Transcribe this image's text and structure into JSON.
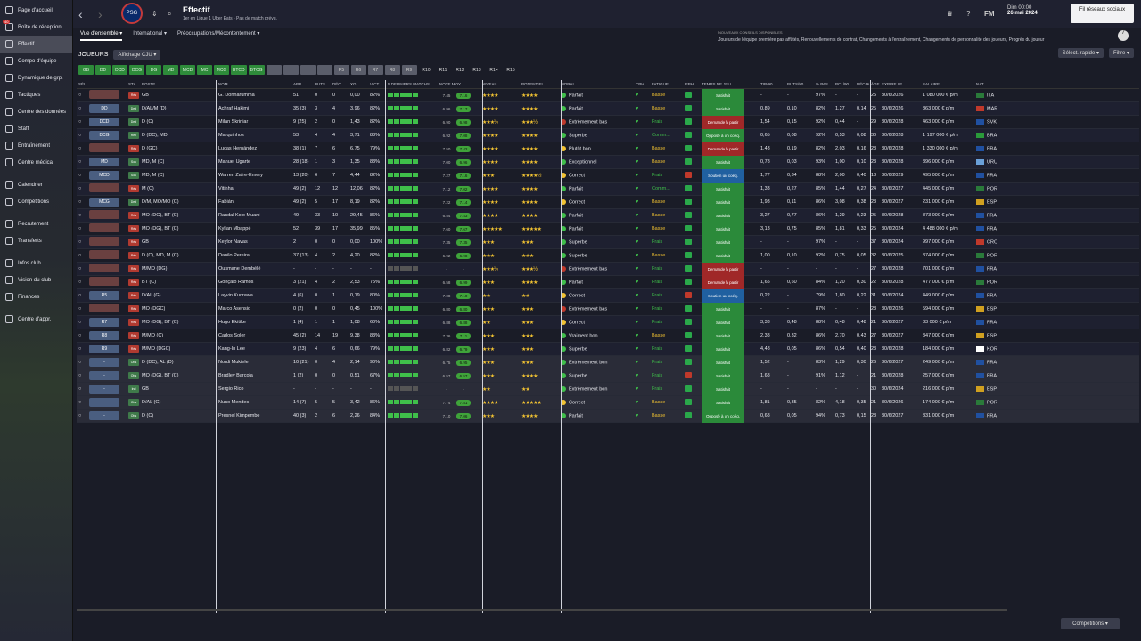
{
  "sidebar": {
    "items": [
      {
        "label": "Page d'accueil"
      },
      {
        "label": "Boîte de réception",
        "badge": "40"
      },
      {
        "label": "Effectif",
        "active": true
      },
      {
        "label": "Compo d'équipe"
      },
      {
        "label": "Dynamique de grp."
      },
      {
        "label": "Tactiques"
      },
      {
        "label": "Centre des données"
      },
      {
        "label": "Staff"
      },
      {
        "label": "Entraînement"
      },
      {
        "label": "Centre médical"
      },
      {
        "label": "Calendrier"
      },
      {
        "label": "Compétitions"
      },
      {
        "label": "Recrutement"
      },
      {
        "label": "Transferts"
      },
      {
        "label": "Infos club"
      },
      {
        "label": "Vision du club"
      },
      {
        "label": "Finances"
      },
      {
        "label": "Centre d'appr."
      }
    ]
  },
  "header": {
    "title": "Effectif",
    "subtitle": "1er en Ligue 1 Uber Eats - Pas de match prévu.",
    "club_logo": "PSG",
    "date_time": "Dim 00:00",
    "date": "26 mai 2024",
    "social_btn": "Fil réseaux sociaux",
    "fm": "FM"
  },
  "tabs": [
    {
      "label": "Vue d'ensemble ▾"
    },
    {
      "label": "International ▾"
    },
    {
      "label": "Préoccupations/Mécontentement ▾"
    }
  ],
  "news": {
    "title": "NOUVEAUX CONSEILS DISPONIBLES",
    "text": "Joueurs de l'équipe première pas affûtés, Renouvellements de contrat, Changements à l'entraînement, Changements de personnalité des joueurs, Progrès du joueur",
    "badge": "7"
  },
  "players_label": "JOUEURS",
  "view_select": "Affichage CJU ▾",
  "quick_select": "Sélect. rapide ▾",
  "filter": "Filtre ▾",
  "pos_filters": [
    "GB",
    "DD",
    "DCD",
    "DCG",
    "DG",
    "MD",
    "MCD",
    "MC",
    "MCG",
    "BTCD",
    "BTCG",
    "",
    "",
    "",
    "",
    "R5",
    "R6",
    "R7",
    "R8",
    "R9",
    "R10",
    "R11",
    "R12",
    "R13",
    "R14",
    "R15"
  ],
  "columns": [
    "SÉL",
    "",
    "STA",
    "POSTE",
    "NOM",
    "APP",
    "BUTS",
    "DÉC",
    "XG",
    "VICT",
    "5 DERNIERS MATCHS",
    "NOTE MOY.",
    "NIVEAU",
    "POTENTIEL",
    "MORAL",
    "CPH",
    "FATIGUE",
    "FPH",
    "TEMPS DE JEU",
    "TIR/90",
    "BUTS/90",
    "% PAS.",
    "PCL/90",
    "DÉC/90",
    "ÂGE",
    "EXPIRE LE",
    "SALAIRE",
    "NAT"
  ],
  "players": [
    {
      "tac": "",
      "sta": "Rés",
      "pos": "GB",
      "name": "G. Donnarumma",
      "app": "51",
      "buts": "0",
      "dec": "0",
      "xg": "0,00",
      "vict": "82%",
      "note1": "7.45",
      "note2": "7.16",
      "niv": "★★★★",
      "pot": "★★★★",
      "moral": "Parfait",
      "mc": "#3fbf4a",
      "fat": "Basse",
      "tps": "Satisfait",
      "tc": "",
      "tir": "-",
      "b90": "-",
      "pas": "97%",
      "pcl": "-",
      "d90": "-",
      "age": "25",
      "exp": "30/6/2026",
      "sal": "1 080 000 € p/m",
      "nat": "ITA",
      "fl": "#2a7a3a"
    },
    {
      "tac": "DD",
      "sta": "Ded",
      "pos": "D/AL/M (D)",
      "name": "Achraf Hakimi",
      "app": "35 (3)",
      "buts": "3",
      "dec": "4",
      "xg": "3,96",
      "vict": "82%",
      "note1": "6.96",
      "note2": "7.17",
      "niv": "★★★★",
      "pot": "★★★★",
      "moral": "Parfait",
      "mc": "#3fbf4a",
      "fat": "Basse",
      "tps": "Satisfait",
      "tc": "",
      "tir": "0,89",
      "b90": "0,10",
      "pas": "82%",
      "pcl": "1,27",
      "d90": "0,14",
      "age": "25",
      "exp": "30/6/2026",
      "sal": "863 000 € p/m",
      "nat": "MAR",
      "fl": "#c0392b"
    },
    {
      "tac": "DCD",
      "sta": "Ded",
      "pos": "D (C)",
      "name": "Milan Škriniar",
      "app": "9 (25)",
      "buts": "2",
      "dec": "0",
      "xg": "1,43",
      "vict": "82%",
      "note1": "6.90",
      "note2": "6.98",
      "niv": "★★★½",
      "pot": "★★★½",
      "moral": "Extrêmement bas",
      "mc": "#c0392b",
      "fat": "Frais",
      "tps": "Demande à partir",
      "tc": "red",
      "tir": "1,54",
      "b90": "0,15",
      "pas": "92%",
      "pcl": "0,44",
      "d90": "-",
      "age": "29",
      "exp": "30/6/2028",
      "sal": "463 000 € p/m",
      "nat": "SVK",
      "fl": "#2050a0"
    },
    {
      "tac": "DCG",
      "sta": "Rep",
      "pos": "D (DC), MD",
      "name": "Marquinhos",
      "app": "53",
      "buts": "4",
      "dec": "4",
      "xg": "3,71",
      "vict": "83%",
      "note1": "6.92",
      "note2": "7.08",
      "niv": "★★★★",
      "pot": "★★★★",
      "moral": "Superbe",
      "mc": "#3fbf4a",
      "fat": "Comm...",
      "tps": "Opposé à un coéq.",
      "tc": "",
      "tir": "0,65",
      "b90": "0,08",
      "pas": "92%",
      "pcl": "0,53",
      "d90": "0,08",
      "age": "30",
      "exp": "30/6/2028",
      "sal": "1 197 000 € p/m",
      "nat": "BRA",
      "fl": "#2a9a3a"
    },
    {
      "tac": "",
      "sta": "Rés",
      "pos": "D (GC)",
      "name": "Lucas Hernández",
      "app": "38 (1)",
      "buts": "7",
      "dec": "6",
      "xg": "6,75",
      "vict": "79%",
      "note1": "7.50",
      "note2": "7.42",
      "niv": "★★★★",
      "pot": "★★★★",
      "moral": "Plutôt bon",
      "mc": "#f1c232",
      "fat": "Basse",
      "tps": "Demande à partir",
      "tc": "red",
      "tir": "1,43",
      "b90": "0,19",
      "pas": "82%",
      "pcl": "2,03",
      "d90": "0,16",
      "age": "28",
      "exp": "30/6/2028",
      "sal": "1 330 000 € p/m",
      "nat": "FRA",
      "fl": "#2050a0"
    },
    {
      "tac": "MD",
      "sta": "Sou",
      "pos": "MD, M (C)",
      "name": "Manuel Ugarte",
      "app": "28 (18)",
      "buts": "1",
      "dec": "3",
      "xg": "1,35",
      "vict": "83%",
      "note1": "7.00",
      "note2": "6.96",
      "niv": "★★★★",
      "pot": "★★★★",
      "moral": "Exceptionnel",
      "mc": "#3fbf4a",
      "fat": "Basse",
      "tps": "Satisfait",
      "tc": "",
      "tir": "0,78",
      "b90": "0,03",
      "pas": "93%",
      "pcl": "1,00",
      "d90": "0,10",
      "age": "23",
      "exp": "30/6/2028",
      "sal": "396 000 € p/m",
      "nat": "URU",
      "fl": "#6aa0d8"
    },
    {
      "tac": "MCD",
      "sta": "Sou",
      "pos": "MD, M (C)",
      "name": "Warren Zaïre-Emery",
      "app": "13 (20)",
      "buts": "6",
      "dec": "7",
      "xg": "4,44",
      "vict": "82%",
      "note1": "7.27",
      "note2": "7.16",
      "niv": "★★★",
      "pot": "★★★★½",
      "moral": "Correct",
      "mc": "#f1c232",
      "fat": "Frais",
      "tps": "Soutien un coéq.",
      "tc": "blue",
      "tir": "1,77",
      "b90": "0,34",
      "pas": "88%",
      "pcl": "2,00",
      "d90": "0,40",
      "age": "18",
      "exp": "30/6/2029",
      "sal": "495 000 € p/m",
      "nat": "FRA",
      "fl": "#2050a0"
    },
    {
      "tac": "",
      "sta": "Rés",
      "pos": "M (C)",
      "name": "Vitinha",
      "app": "49 (2)",
      "buts": "12",
      "dec": "12",
      "xg": "12,06",
      "vict": "82%",
      "note1": "7.12",
      "note2": "7.02",
      "niv": "★★★★",
      "pot": "★★★★",
      "moral": "Parfait",
      "mc": "#3fbf4a",
      "fat": "Comm...",
      "tps": "Satisfait",
      "tc": "",
      "tir": "1,33",
      "b90": "0,27",
      "pas": "85%",
      "pcl": "1,44",
      "d90": "0,27",
      "age": "24",
      "exp": "30/6/2027",
      "sal": "445 000 € p/m",
      "nat": "POR",
      "fl": "#2a7a3a"
    },
    {
      "tac": "MCG",
      "sta": "Ded",
      "pos": "D/M, MO/MO (C)",
      "name": "Fabián",
      "app": "49 (2)",
      "buts": "5",
      "dec": "17",
      "xg": "8,19",
      "vict": "82%",
      "note1": "7.22",
      "note2": "7.14",
      "niv": "★★★★",
      "pot": "★★★★",
      "moral": "Correct",
      "mc": "#f1c232",
      "fat": "Basse",
      "tps": "Satisfait",
      "tc": "",
      "tir": "1,93",
      "b90": "0,11",
      "pas": "86%",
      "pcl": "3,08",
      "d90": "0,38",
      "age": "28",
      "exp": "30/6/2027",
      "sal": "231 000 € p/m",
      "nat": "ESP",
      "fl": "#d0a020"
    },
    {
      "tac": "",
      "sta": "Rés",
      "pos": "MO (DG), BT (C)",
      "name": "Randal Kolo Muani",
      "app": "49",
      "buts": "33",
      "dec": "10",
      "xg": "29,45",
      "vict": "86%",
      "note1": "6.54",
      "note2": "7.43",
      "niv": "★★★★",
      "pot": "★★★★",
      "moral": "Parfait",
      "mc": "#3fbf4a",
      "fat": "Basse",
      "tps": "Satisfait",
      "tc": "",
      "tir": "3,27",
      "b90": "0,77",
      "pas": "86%",
      "pcl": "1,29",
      "d90": "0,23",
      "age": "25",
      "exp": "30/6/2028",
      "sal": "873 000 € p/m",
      "nat": "FRA",
      "fl": "#2050a0"
    },
    {
      "tac": "",
      "sta": "Rés",
      "pos": "MO (DG), BT (C)",
      "name": "Kylian Mbappé",
      "app": "52",
      "buts": "39",
      "dec": "17",
      "xg": "35,99",
      "vict": "85%",
      "note1": "7.60",
      "note2": "7.67",
      "niv": "★★★★★",
      "pot": "★★★★★",
      "moral": "Parfait",
      "mc": "#3fbf4a",
      "fat": "Basse",
      "tps": "Satisfait",
      "tc": "",
      "tir": "3,13",
      "b90": "0,75",
      "pas": "85%",
      "pcl": "1,81",
      "d90": "0,33",
      "age": "25",
      "exp": "30/6/2024",
      "sal": "4 488 000 € p/m",
      "nat": "FRA",
      "fl": "#2050a0"
    },
    {
      "tac": "",
      "sta": "Rés",
      "pos": "GB",
      "name": "Keylor Navas",
      "app": "2",
      "buts": "0",
      "dec": "0",
      "xg": "0,00",
      "vict": "100%",
      "note1": "7.35",
      "note2": "7.35",
      "niv": "★★★",
      "pot": "★★★",
      "moral": "Superbe",
      "mc": "#3fbf4a",
      "fat": "Frais",
      "tps": "Satisfait",
      "tc": "",
      "tir": "-",
      "b90": "-",
      "pas": "97%",
      "pcl": "-",
      "d90": "-",
      "age": "37",
      "exp": "30/6/2024",
      "sal": "997 000 € p/m",
      "nat": "CRC",
      "fl": "#c0392b"
    },
    {
      "tac": "",
      "sta": "Rés",
      "pos": "D (C), MD, M (C)",
      "name": "Danilo Pereira",
      "app": "37 (13)",
      "buts": "4",
      "dec": "2",
      "xg": "4,20",
      "vict": "82%",
      "note1": "6.92",
      "note2": "6.98",
      "niv": "★★★",
      "pot": "★★★",
      "moral": "Superbe",
      "mc": "#3fbf4a",
      "fat": "Basse",
      "tps": "Satisfait",
      "tc": "",
      "tir": "1,00",
      "b90": "0,10",
      "pas": "92%",
      "pcl": "0,75",
      "d90": "0,05",
      "age": "32",
      "exp": "30/6/2025",
      "sal": "374 000 € p/m",
      "nat": "POR",
      "fl": "#2a7a3a"
    },
    {
      "tac": "",
      "sta": "Rés",
      "pos": "M/MO (DG)",
      "name": "Ousmane Dembélé",
      "app": "-",
      "buts": "-",
      "dec": "-",
      "xg": "-",
      "vict": "-",
      "note1": "-",
      "note2": "-",
      "niv": "★★★½",
      "pot": "★★★½",
      "moral": "Extrêmement bas",
      "mc": "#c0392b",
      "fat": "Frais",
      "tps": "Demande à partir",
      "tc": "red",
      "tir": "-",
      "b90": "-",
      "pas": "-",
      "pcl": "-",
      "d90": "-",
      "age": "27",
      "exp": "30/6/2028",
      "sal": "701 000 € p/m",
      "nat": "FRA",
      "fl": "#2050a0"
    },
    {
      "tac": "",
      "sta": "Rés",
      "pos": "BT (C)",
      "name": "Gonçalo Ramos",
      "app": "3 (21)",
      "buts": "4",
      "dec": "2",
      "xg": "2,53",
      "vict": "75%",
      "note1": "6.58",
      "note2": "6.99",
      "niv": "★★★",
      "pot": "★★★★",
      "moral": "Parfait",
      "mc": "#3fbf4a",
      "fat": "Frais",
      "tps": "Demande à partir",
      "tc": "red",
      "tir": "1,65",
      "b90": "0,60",
      "pas": "84%",
      "pcl": "1,20",
      "d90": "0,30",
      "age": "22",
      "exp": "30/6/2028",
      "sal": "477 000 € p/m",
      "nat": "POR",
      "fl": "#2a7a3a"
    },
    {
      "tac": "R5",
      "sta": "Rés",
      "pos": "D/AL (G)",
      "name": "Layvin Kurzawa",
      "app": "4 (6)",
      "buts": "0",
      "dec": "1",
      "xg": "0,19",
      "vict": "80%",
      "note1": "7.08",
      "note2": "7.10",
      "niv": "★★",
      "pot": "★★",
      "moral": "Correct",
      "mc": "#f1c232",
      "fat": "Frais",
      "tps": "Soutien un coéq.",
      "tc": "blue",
      "tir": "0,22",
      "b90": "-",
      "pas": "79%",
      "pcl": "1,80",
      "d90": "0,22",
      "age": "31",
      "exp": "30/6/2024",
      "sal": "449 000 € p/m",
      "nat": "FRA",
      "fl": "#2050a0"
    },
    {
      "tac": "",
      "sta": "Rés",
      "pos": "MO (DGC)",
      "name": "Marco Asensio",
      "app": "0 (2)",
      "buts": "0",
      "dec": "0",
      "xg": "0,45",
      "vict": "100%",
      "note1": "6.80",
      "note2": "6.80",
      "niv": "★★★",
      "pot": "★★★",
      "moral": "Extrêmement bas",
      "mc": "#c0392b",
      "fat": "Frais",
      "tps": "Satisfait",
      "tc": "",
      "tir": "-",
      "b90": "-",
      "pas": "87%",
      "pcl": "-",
      "d90": "-",
      "age": "28",
      "exp": "30/6/2026",
      "sal": "594 000 € p/m",
      "nat": "ESP",
      "fl": "#d0a020"
    },
    {
      "tac": "R7",
      "sta": "Rés",
      "pos": "MO (DG), BT (C)",
      "name": "Hugo Ekitike",
      "app": "1 (4)",
      "buts": "1",
      "dec": "1",
      "xg": "1,08",
      "vict": "60%",
      "note1": "6.88",
      "note2": "6.88",
      "niv": "★★",
      "pot": "★★★",
      "moral": "Correct",
      "mc": "#f1c232",
      "fat": "Frais",
      "tps": "Satisfait",
      "tc": "",
      "tir": "3,33",
      "b90": "0,48",
      "pas": "88%",
      "pcl": "0,48",
      "d90": "0,48",
      "age": "21",
      "exp": "30/6/2027",
      "sal": "83 000 € p/m",
      "nat": "FRA",
      "fl": "#2050a0"
    },
    {
      "tac": "R8",
      "sta": "Rés",
      "pos": "M/MO (C)",
      "name": "Carlos Soler",
      "app": "45 (2)",
      "buts": "14",
      "dec": "19",
      "xg": "9,38",
      "vict": "83%",
      "note1": "7.36",
      "note2": "7.11",
      "niv": "★★★",
      "pot": "★★★",
      "moral": "Vraiment bon",
      "mc": "#3fbf4a",
      "fat": "Basse",
      "tps": "Satisfait",
      "tc": "",
      "tir": "2,38",
      "b90": "0,32",
      "pas": "86%",
      "pcl": "2,70",
      "d90": "0,43",
      "age": "27",
      "exp": "30/6/2027",
      "sal": "347 000 € p/m",
      "nat": "ESP",
      "fl": "#d0a020"
    },
    {
      "tac": "R9",
      "sta": "Rés",
      "pos": "M/MO (DGC)",
      "name": "Kang-In Lee",
      "app": "9 (23)",
      "buts": "4",
      "dec": "6",
      "xg": "0,66",
      "vict": "79%",
      "note1": "6.82",
      "note2": "6.79",
      "niv": "★★★",
      "pot": "★★★",
      "moral": "Superbe",
      "mc": "#3fbf4a",
      "fat": "Frais",
      "tps": "Satisfait",
      "tc": "",
      "tir": "4,48",
      "b90": "0,05",
      "pas": "86%",
      "pcl": "0,54",
      "d90": "0,40",
      "age": "23",
      "exp": "30/6/2028",
      "sal": "184 000 € p/m",
      "nat": "KOR",
      "fl": "#ffffff"
    },
    {
      "tac": "-",
      "sta": "Obs",
      "pos": "D (DC), AL (D)",
      "name": "Nordi Mukiele",
      "app": "10 (21)",
      "buts": "0",
      "dec": "4",
      "xg": "2,14",
      "vict": "90%",
      "note1": "6.75",
      "note2": "6.95",
      "niv": "★★★",
      "pot": "★★★",
      "moral": "Extrêmement bon",
      "mc": "#3fbf4a",
      "fat": "Frais",
      "tps": "Satisfait",
      "tc": "",
      "tir": "1,52",
      "b90": "-",
      "pas": "83%",
      "pcl": "1,29",
      "d90": "0,30",
      "age": "26",
      "exp": "30/6/2027",
      "sal": "249 000 € p/m",
      "nat": "FRA",
      "fl": "#2050a0",
      "dim": true
    },
    {
      "tac": "-",
      "sta": "Obs",
      "pos": "MO (DG), BT (C)",
      "name": "Bradley Barcola",
      "app": "1 (2)",
      "buts": "0",
      "dec": "0",
      "xg": "0,51",
      "vict": "67%",
      "note1": "6.57",
      "note2": "6.57",
      "niv": "★★★",
      "pot": "★★★★",
      "moral": "Superbe",
      "mc": "#3fbf4a",
      "fat": "Frais",
      "tps": "Satisfait",
      "tc": "",
      "tir": "1,68",
      "b90": "-",
      "pas": "91%",
      "pcl": "1,12",
      "d90": "-",
      "age": "21",
      "exp": "30/6/2028",
      "sal": "257 000 € p/m",
      "nat": "FRA",
      "fl": "#2050a0",
      "dim": true
    },
    {
      "tac": "-",
      "sta": "Ind",
      "pos": "GB",
      "name": "Sergio Rico",
      "app": "-",
      "buts": "-",
      "dec": "-",
      "xg": "-",
      "vict": "-",
      "note1": "-",
      "note2": "-",
      "niv": "★★",
      "pot": "★★",
      "moral": "Extrêmement bon",
      "mc": "#3fbf4a",
      "fat": "Frais",
      "tps": "Satisfait",
      "tc": "",
      "tir": "-",
      "b90": "-",
      "pas": "-",
      "pcl": "-",
      "d90": "-",
      "age": "30",
      "exp": "30/6/2024",
      "sal": "216 000 € p/m",
      "nat": "ESP",
      "fl": "#d0a020",
      "dim": true
    },
    {
      "tac": "-",
      "sta": "Obs",
      "pos": "D/AL (G)",
      "name": "Nuno Mendes",
      "app": "14 (7)",
      "buts": "5",
      "dec": "5",
      "xg": "3,42",
      "vict": "86%",
      "note1": "7.74",
      "note2": "7.81",
      "niv": "★★★★",
      "pot": "★★★★★",
      "moral": "Correct",
      "mc": "#f1c232",
      "fat": "Basse",
      "tps": "Satisfait",
      "tc": "",
      "tir": "1,81",
      "b90": "0,35",
      "pas": "82%",
      "pcl": "4,18",
      "d90": "0,35",
      "age": "21",
      "exp": "30/6/2026",
      "sal": "174 000 € p/m",
      "nat": "POR",
      "fl": "#2a7a3a",
      "dim": true
    },
    {
      "tac": "-",
      "sta": "Obs",
      "pos": "D (C)",
      "name": "Presnel Kimpembe",
      "app": "40 (3)",
      "buts": "2",
      "dec": "6",
      "xg": "2,26",
      "vict": "84%",
      "note1": "7.10",
      "note2": "7.06",
      "niv": "★★★",
      "pot": "★★★★",
      "moral": "Parfait",
      "mc": "#3fbf4a",
      "fat": "Basse",
      "tps": "Opposé à un coéq.",
      "tc": "",
      "tir": "0,68",
      "b90": "0,05",
      "pas": "94%",
      "pcl": "0,73",
      "d90": "0,15",
      "age": "28",
      "exp": "30/6/2027",
      "sal": "831 000 € p/m",
      "nat": "FRA",
      "fl": "#2050a0",
      "dim": true
    }
  ],
  "footer_btn": "Compétitions ▾"
}
